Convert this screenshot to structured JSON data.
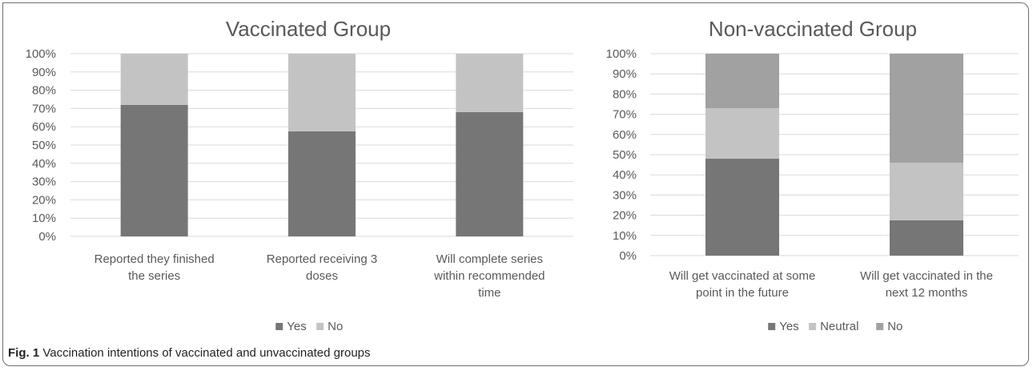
{
  "chart_data": [
    {
      "type": "bar",
      "stacked": true,
      "title": "Vaccinated Group",
      "categories": [
        [
          "Reported they finished",
          "the series"
        ],
        [
          "Reported receiving 3",
          "doses"
        ],
        [
          "Will complete series",
          "within recommended",
          "time"
        ]
      ],
      "series": [
        {
          "name": "Yes",
          "color": "#767676",
          "values": [
            72,
            57.5,
            68
          ]
        },
        {
          "name": "No",
          "color": "#c3c3c3",
          "values": [
            28,
            42.5,
            32
          ]
        }
      ],
      "ylim": [
        0,
        100
      ],
      "yticks": [
        "0%",
        "10%",
        "20%",
        "30%",
        "40%",
        "50%",
        "60%",
        "70%",
        "80%",
        "90%",
        "100%"
      ],
      "grid": true,
      "legend": "bottom"
    },
    {
      "type": "bar",
      "stacked": true,
      "title": "Non-vaccinated Group",
      "categories": [
        [
          "Will get vaccinated at some",
          "point in the future"
        ],
        [
          "Will get vaccinated  in the",
          "next 12 months"
        ]
      ],
      "series": [
        {
          "name": "Yes",
          "color": "#767676",
          "values": [
            48,
            17.5
          ]
        },
        {
          "name": "Neutral",
          "color": "#c3c3c3",
          "values": [
            25,
            28.5
          ]
        },
        {
          "name": "No",
          "color": "#a1a1a1",
          "values": [
            27,
            54
          ]
        }
      ],
      "ylim": [
        0,
        100
      ],
      "yticks": [
        "0%",
        "10%",
        "20%",
        "30%",
        "40%",
        "50%",
        "60%",
        "70%",
        "80%",
        "90%",
        "100%"
      ],
      "grid": true,
      "legend": "bottom"
    }
  ],
  "caption": {
    "label": "Fig. 1",
    "text": " Vaccination intentions of vaccinated and unvaccinated groups"
  }
}
